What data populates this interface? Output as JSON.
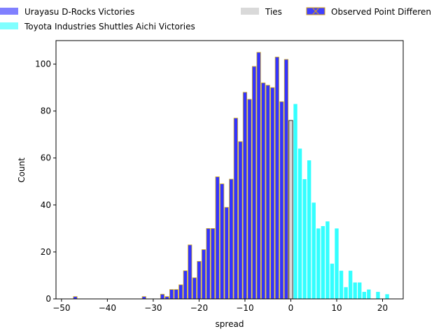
{
  "chart_data": {
    "type": "bar",
    "title": "",
    "xlabel": "spread",
    "ylabel": "Count",
    "xlim": [
      -51.2,
      24.5
    ],
    "ylim": [
      0,
      110
    ],
    "xticks": [
      -50,
      -40,
      -30,
      -20,
      -10,
      0,
      10,
      20
    ],
    "yticks": [
      0,
      20,
      40,
      60,
      80,
      100
    ],
    "grid": false,
    "legend_placement": "top, above plot",
    "legend": [
      {
        "label": "Urayasu D-Rocks Victories",
        "color": "#8080ff"
      },
      {
        "label": "Toyota Industries Shuttles Aichi Victories",
        "color": "#80ffff"
      },
      {
        "label": "Ties",
        "color": "#d9d9d9"
      },
      {
        "label": "Observed Point Differen",
        "color": "#4040ff",
        "edge": "#d4a017",
        "marker": "x"
      }
    ],
    "series": [
      {
        "name": "Urayasu D-Rocks Victories",
        "color": "#3333ff",
        "edge": "#d4b020",
        "x": [
          -47,
          -32,
          -28,
          -27,
          -26,
          -25,
          -24,
          -23,
          -22,
          -21,
          -20,
          -19,
          -18,
          -17,
          -16,
          -15,
          -14,
          -13,
          -12,
          -11,
          -10,
          -9,
          -8,
          -7,
          -6,
          -5,
          -4,
          -3,
          -2,
          -1
        ],
        "values": [
          1,
          1,
          2,
          1,
          4,
          4,
          6,
          12,
          23,
          9,
          16,
          21,
          30,
          30,
          52,
          49,
          39,
          51,
          77,
          67,
          88,
          85,
          99,
          105,
          92,
          91,
          90,
          103,
          84,
          102
        ]
      },
      {
        "name": "Ties",
        "color": "#d9d9d9",
        "edge": "#000000",
        "x": [
          0
        ],
        "values": [
          76
        ]
      },
      {
        "name": "Toyota Industries Shuttles Aichi Victories",
        "color": "#33ffff",
        "x": [
          1,
          2,
          3,
          4,
          5,
          6,
          7,
          8,
          9,
          10,
          11,
          12,
          13,
          14,
          15,
          16,
          17,
          19,
          21
        ],
        "values": [
          83,
          64,
          51,
          59,
          41,
          30,
          31,
          33,
          15,
          30,
          12,
          5,
          12,
          7,
          7,
          3,
          4,
          3,
          2
        ]
      }
    ]
  }
}
